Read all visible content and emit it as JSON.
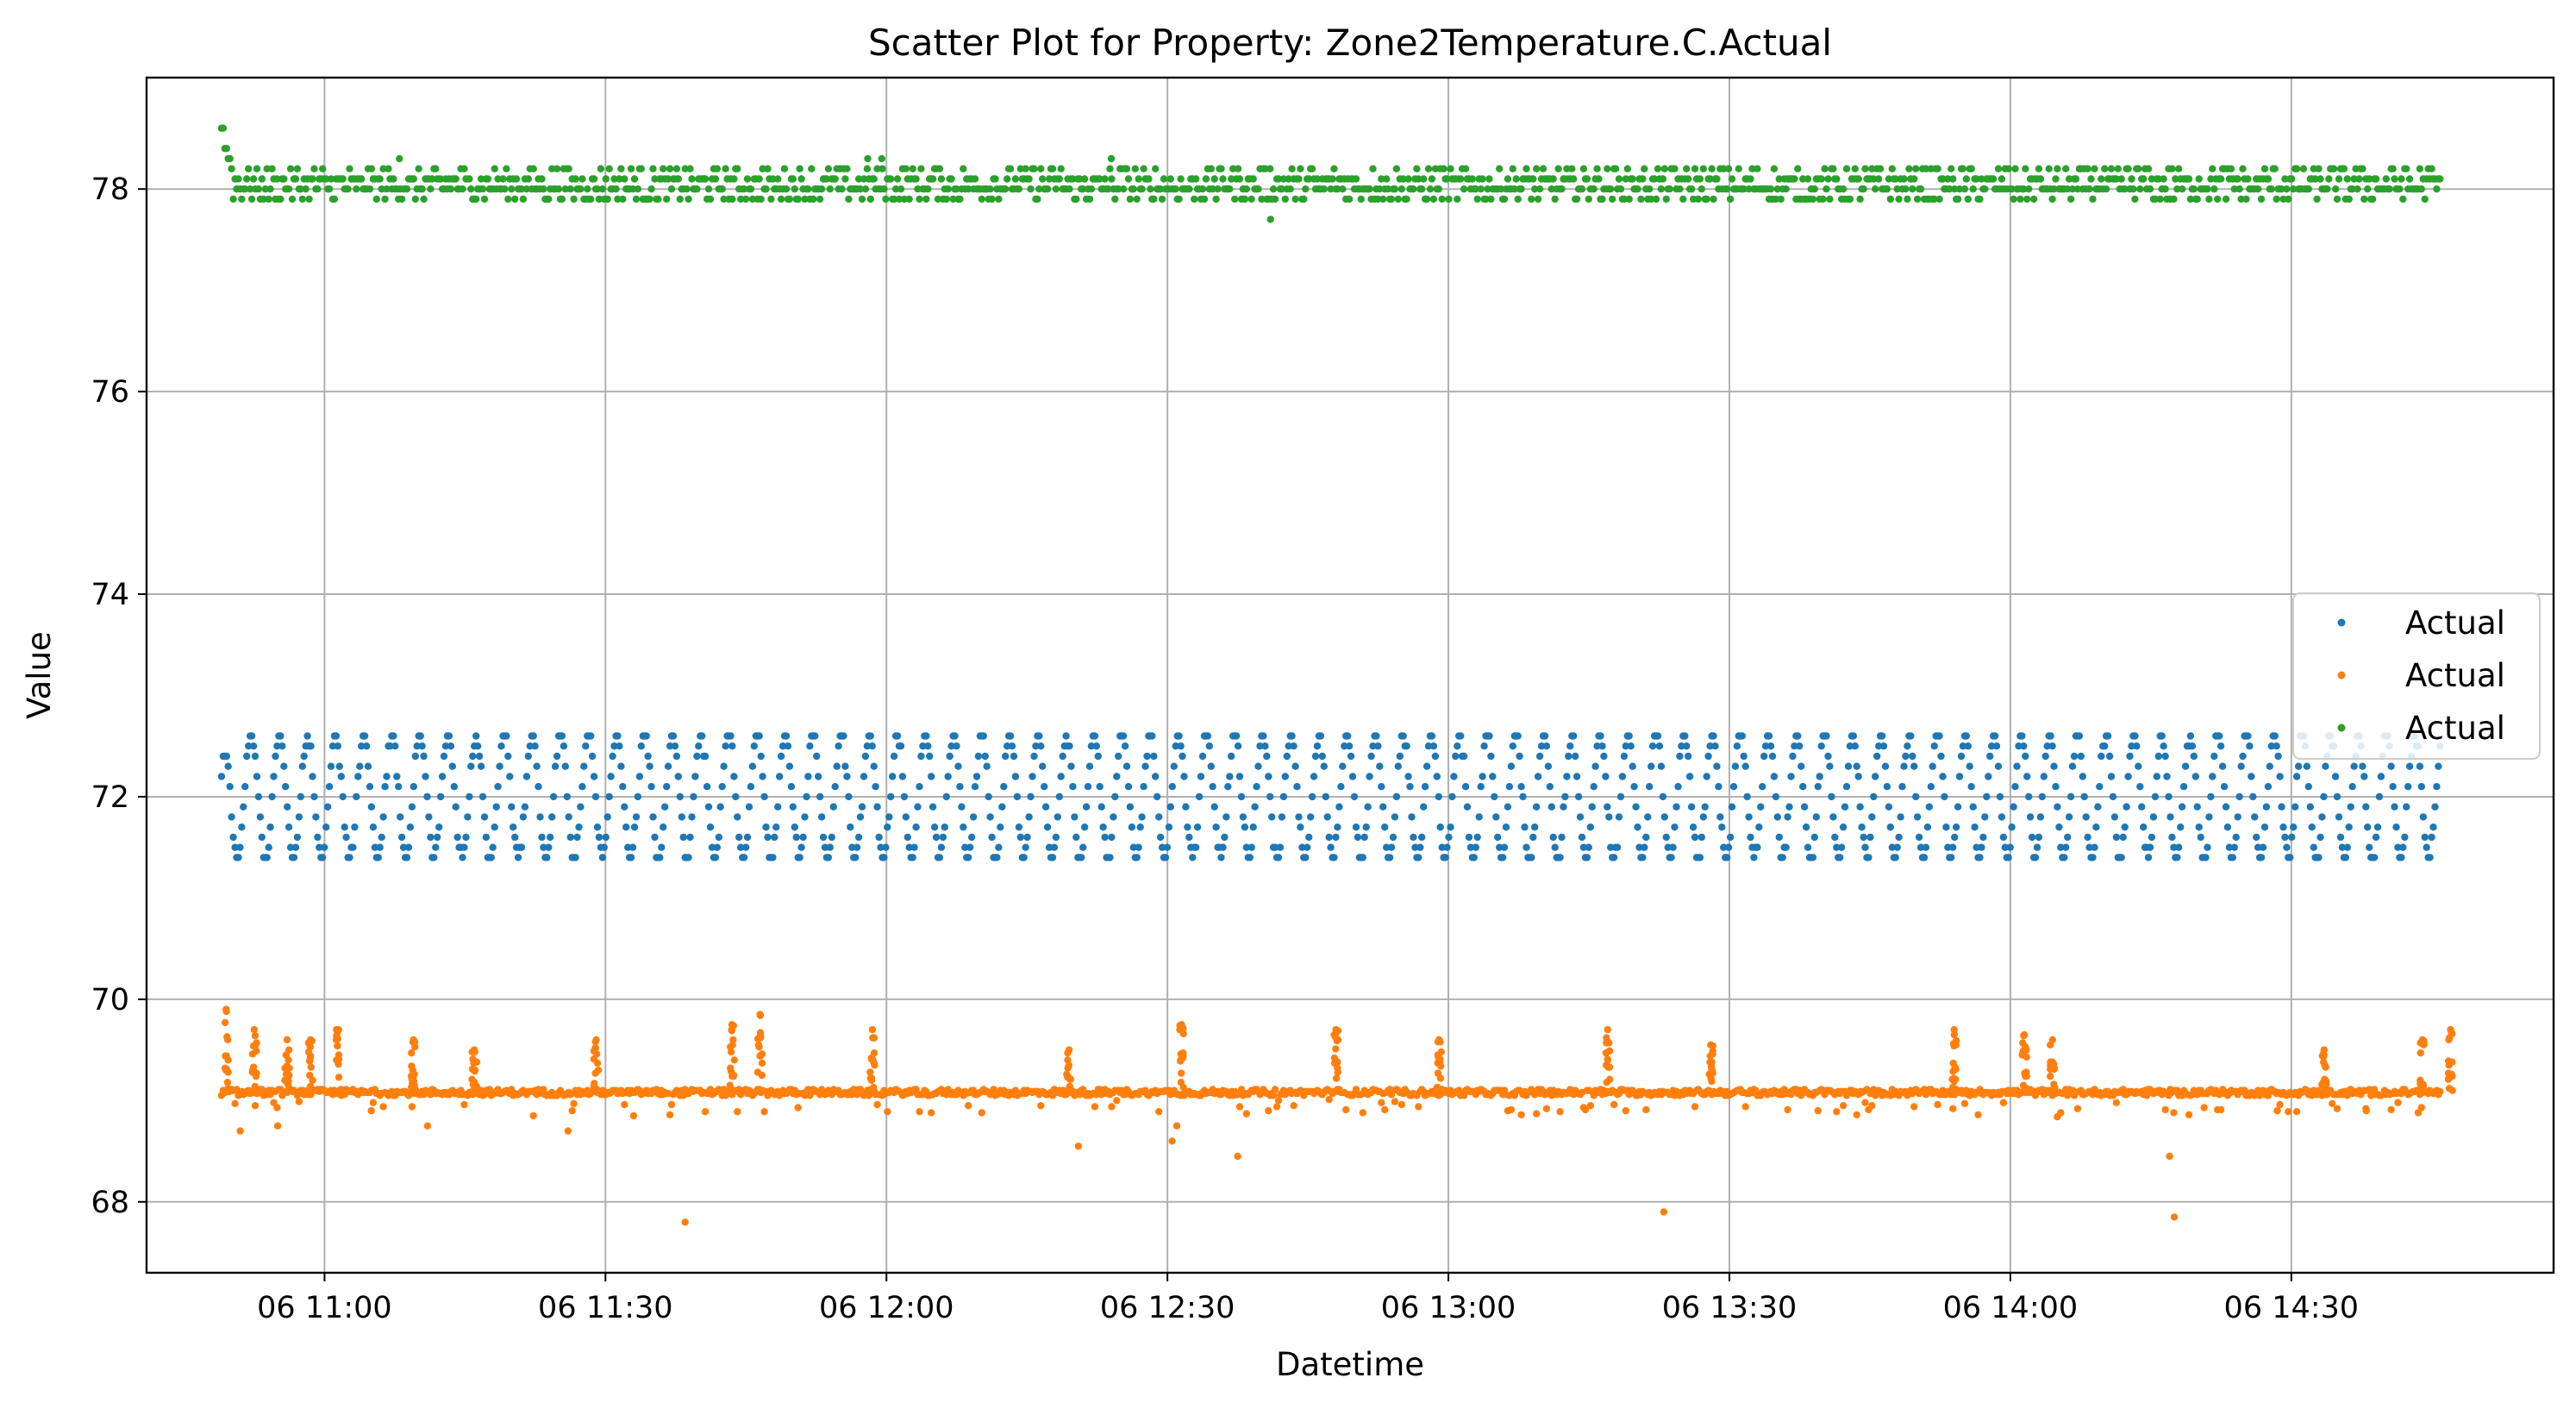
{
  "chart_data": {
    "type": "scatter",
    "title": "Scatter Plot for Property: Zone2Temperature.C.Actual",
    "xlabel": "Datetime",
    "ylabel": "Value",
    "x_range": [
      "06 10:41",
      "06 14:58"
    ],
    "xlim_minutes_from_10_41": [
      0,
      257
    ],
    "ylim": [
      67.3,
      79.1
    ],
    "x_ticks": [
      {
        "label": "06 11:00",
        "minute": 19
      },
      {
        "label": "06 11:30",
        "minute": 49
      },
      {
        "label": "06 12:00",
        "minute": 79
      },
      {
        "label": "06 12:30",
        "minute": 109
      },
      {
        "label": "06 13:00",
        "minute": 139
      },
      {
        "label": "06 13:30",
        "minute": 169
      },
      {
        "label": "06 14:00",
        "minute": 199
      },
      {
        "label": "06 14:30",
        "minute": 229
      }
    ],
    "y_ticks": [
      68,
      70,
      72,
      74,
      76,
      78
    ],
    "grid": true,
    "legend_position": "center-right",
    "series": [
      {
        "name": "Actual",
        "color": "#1f77b4",
        "x_start": "06 10:49",
        "x_end": "06 14:46",
        "start_minute": 8,
        "end_minute": 245,
        "pattern": "oscillating",
        "cycle_minutes": 3.0,
        "y_min": 71.4,
        "y_max": 72.6,
        "initial_value": 72.3
      },
      {
        "name": "Actual",
        "color": "#ff7f0e",
        "x_start": "06 10:49",
        "x_end": "06 14:46",
        "start_minute": 8,
        "end_minute": 245,
        "pattern": "baseline-with-spikes",
        "baseline": 69.08,
        "spikes": [
          {
            "minute": 8.5,
            "peak": 69.9
          },
          {
            "minute": 11.5,
            "peak": 69.7
          },
          {
            "minute": 15,
            "peak": 69.6
          },
          {
            "minute": 17.5,
            "peak": 69.6
          },
          {
            "minute": 20.5,
            "peak": 69.7
          },
          {
            "minute": 28.5,
            "peak": 69.6
          },
          {
            "minute": 35,
            "peak": 69.5
          },
          {
            "minute": 48,
            "peak": 69.6
          },
          {
            "minute": 62.5,
            "peak": 69.75
          },
          {
            "minute": 65.5,
            "peak": 69.85
          },
          {
            "minute": 77.5,
            "peak": 69.7
          },
          {
            "minute": 98.5,
            "peak": 69.5
          },
          {
            "minute": 110.5,
            "peak": 69.75
          },
          {
            "minute": 127,
            "peak": 69.7
          },
          {
            "minute": 138,
            "peak": 69.6
          },
          {
            "minute": 156,
            "peak": 69.7
          },
          {
            "minute": 167,
            "peak": 69.55
          },
          {
            "minute": 193,
            "peak": 69.7
          },
          {
            "minute": 200.5,
            "peak": 69.65
          },
          {
            "minute": 203.5,
            "peak": 69.6
          },
          {
            "minute": 232.5,
            "peak": 69.5
          },
          {
            "minute": 243,
            "peak": 69.6
          },
          {
            "minute": 246,
            "peak": 69.7
          }
        ],
        "outliers": [
          {
            "minute": 10,
            "y": 68.7
          },
          {
            "minute": 14,
            "y": 68.75
          },
          {
            "minute": 24,
            "y": 68.9
          },
          {
            "minute": 30,
            "y": 68.75
          },
          {
            "minute": 45,
            "y": 68.7
          },
          {
            "minute": 52,
            "y": 68.85
          },
          {
            "minute": 57.5,
            "y": 67.8
          },
          {
            "minute": 99.5,
            "y": 68.55
          },
          {
            "minute": 109.5,
            "y": 68.6
          },
          {
            "minute": 110,
            "y": 68.75
          },
          {
            "minute": 116.5,
            "y": 68.45
          },
          {
            "minute": 162,
            "y": 67.9
          },
          {
            "minute": 216,
            "y": 68.45
          },
          {
            "minute": 216.5,
            "y": 67.85
          },
          {
            "minute": 227.5,
            "y": 68.9
          },
          {
            "minute": 237,
            "y": 68.9
          }
        ]
      },
      {
        "name": "Actual",
        "color": "#2ca02c",
        "x_start": "06 10:49",
        "x_end": "06 14:46",
        "start_minute": 8,
        "end_minute": 245,
        "pattern": "flat-band",
        "initial_peak": 78.6,
        "band_values": [
          77.9,
          78.0,
          78.1,
          78.2
        ],
        "outliers": [
          {
            "minute": 27,
            "y": 78.3
          },
          {
            "minute": 77,
            "y": 78.3
          },
          {
            "minute": 78.5,
            "y": 78.3
          },
          {
            "minute": 103,
            "y": 78.3
          },
          {
            "minute": 120,
            "y": 77.7
          }
        ]
      }
    ]
  }
}
